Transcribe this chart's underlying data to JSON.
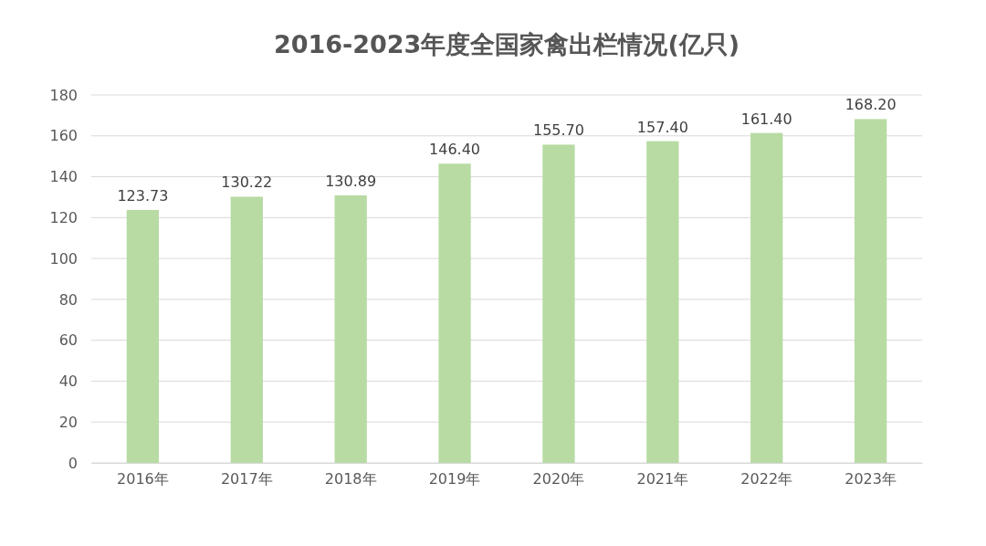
{
  "chart_data": {
    "type": "bar",
    "title": "2016-2023年度全国家禽出栏情况(亿只)",
    "categories": [
      "2016年",
      "2017年",
      "2018年",
      "2019年",
      "2020年",
      "2021年",
      "2022年",
      "2023年"
    ],
    "values": [
      123.73,
      130.22,
      130.89,
      146.4,
      155.7,
      157.4,
      161.4,
      168.2
    ],
    "value_labels": [
      "123.73",
      "130.22",
      "130.89",
      "146.40",
      "155.70",
      "157.40",
      "161.40",
      "168.20"
    ],
    "color": "#b8dba3",
    "ylim": [
      0,
      180
    ],
    "yticks": [
      0,
      20,
      40,
      60,
      80,
      100,
      120,
      140,
      160,
      180
    ],
    "grid": "y"
  }
}
